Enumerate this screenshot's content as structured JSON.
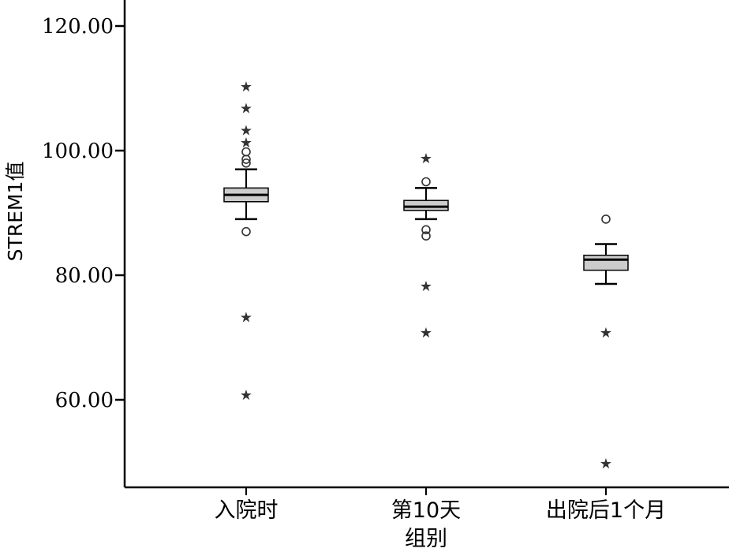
{
  "chart_data": {
    "type": "box",
    "ylabel": "STREM1值",
    "xlabel": "组别",
    "ylim": [
      46,
      124
    ],
    "yticks": [
      {
        "value": 60,
        "label": "60.00"
      },
      {
        "value": 80,
        "label": "80.00"
      },
      {
        "value": 100,
        "label": "100.00"
      },
      {
        "value": 120,
        "label": "120.00"
      }
    ],
    "categories": [
      "入院时",
      "第10天",
      "出院后1个月"
    ],
    "boxes": [
      {
        "category": "入院时",
        "whisker_low": 89.0,
        "q1": 91.8,
        "median": 92.9,
        "q3": 94.0,
        "whisker_high": 97.0,
        "outliers": [
          87.0,
          98.0,
          98.6,
          99.8
        ],
        "extremes": [
          61.0,
          73.5,
          101.5,
          103.5,
          107.0,
          110.5
        ]
      },
      {
        "category": "第10天",
        "whisker_low": 89.0,
        "q1": 90.4,
        "median": 91.0,
        "q3": 92.0,
        "whisker_high": 94.0,
        "outliers": [
          86.3,
          87.3,
          95.0
        ],
        "extremes": [
          71.0,
          78.5,
          99.0
        ]
      },
      {
        "category": "出院后1个月",
        "whisker_low": 78.6,
        "q1": 80.8,
        "median": 82.5,
        "q3": 83.2,
        "whisker_high": 85.0,
        "outliers": [
          89.0
        ],
        "extremes": [
          50.0,
          71.0
        ]
      }
    ],
    "grid": false,
    "legend": "none",
    "colors": {
      "box_fill": "#cccccc",
      "line": "#000000",
      "point": "#333333"
    }
  }
}
